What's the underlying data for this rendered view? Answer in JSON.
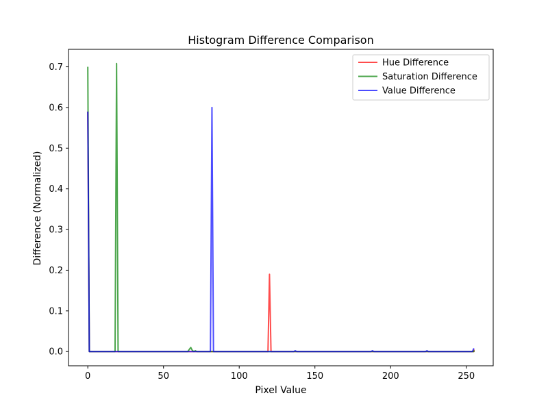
{
  "chart_data": {
    "type": "line",
    "title": "Histogram Difference Comparison",
    "xlabel": "Pixel Value",
    "ylabel": "Difference (Normalized)",
    "xlim": [
      -12.75,
      267.75
    ],
    "ylim": [
      -0.035,
      0.743
    ],
    "xticks": [
      0,
      50,
      100,
      150,
      200,
      250
    ],
    "yticks": [
      0.0,
      0.1,
      0.2,
      0.3,
      0.4,
      0.5,
      0.6,
      0.7
    ],
    "ytick_labels": [
      "0.0",
      "0.1",
      "0.2",
      "0.3",
      "0.4",
      "0.5",
      "0.6",
      "0.7"
    ],
    "grid": false,
    "legend_position": "top-right",
    "series": [
      {
        "name": "Hue Difference",
        "color": "#ff0000",
        "points": [
          [
            0,
            0.59
          ],
          [
            1,
            0
          ],
          [
            118,
            0
          ],
          [
            119,
            0
          ],
          [
            120,
            0.19
          ],
          [
            121,
            0
          ],
          [
            122,
            0
          ],
          [
            255,
            0
          ],
          [
            255,
            0.005
          ]
        ]
      },
      {
        "name": "Saturation Difference",
        "color": "#008000",
        "points": [
          [
            0,
            0.7
          ],
          [
            1,
            0
          ],
          [
            17,
            0
          ],
          [
            18,
            0
          ],
          [
            19,
            0.708
          ],
          [
            20,
            0
          ],
          [
            21,
            0
          ],
          [
            66,
            0
          ],
          [
            67,
            0.005
          ],
          [
            68,
            0.01
          ],
          [
            69,
            0.003
          ],
          [
            70,
            0
          ],
          [
            71,
            0.002
          ],
          [
            72,
            0
          ],
          [
            255,
            0
          ],
          [
            255,
            0.003
          ]
        ]
      },
      {
        "name": "Value Difference",
        "color": "#0000ff",
        "points": [
          [
            0,
            0.59
          ],
          [
            1,
            0
          ],
          [
            80,
            0
          ],
          [
            81,
            0
          ],
          [
            82,
            0.6
          ],
          [
            83,
            0
          ],
          [
            84,
            0
          ],
          [
            136,
            0
          ],
          [
            137,
            0.002
          ],
          [
            138,
            0
          ],
          [
            187,
            0
          ],
          [
            188,
            0.002
          ],
          [
            189,
            0
          ],
          [
            223,
            0
          ],
          [
            224,
            0.002
          ],
          [
            225,
            0
          ],
          [
            254,
            0
          ],
          [
            255,
            0.008
          ]
        ]
      }
    ]
  }
}
